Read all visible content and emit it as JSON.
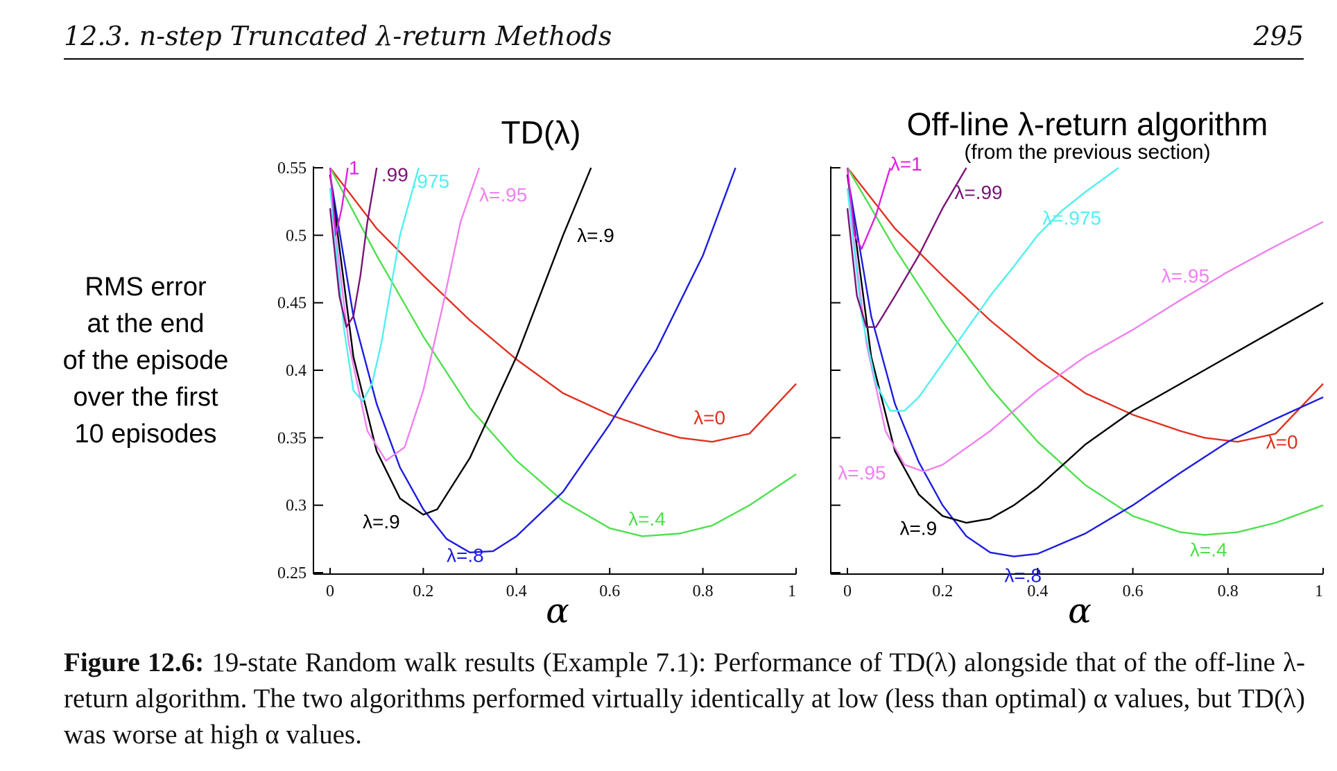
{
  "header": {
    "title": "12.3.  n-step Truncated λ-return Methods",
    "page": "295"
  },
  "ylabel_lines": [
    "RMS error",
    "at the end",
    "of the episode",
    "over the first",
    "10 episodes"
  ],
  "caption": {
    "label": "Figure 12.6:",
    "text": "19-state Random walk results (Example 7.1): Performance of TD(λ) alongside that of the off-line λ-return algorithm. The two algorithms performed virtually identically at low (less than optimal) α values, but TD(λ) was worse at high α values."
  },
  "chart_data": [
    {
      "type": "line",
      "title": "TD(λ)",
      "subtitle": "",
      "xlabel": "α",
      "ylabel": "RMS error at the end of the episode over the first 10 episodes",
      "xlim": [
        0,
        1
      ],
      "ylim": [
        0.25,
        0.55
      ],
      "xticks": [
        "0",
        "0.2",
        "0.4",
        "0.6",
        "0.8",
        "1"
      ],
      "yticks": [
        "0.25",
        "0.3",
        "0.35",
        "0.4",
        "0.45",
        "0.5",
        "0.55"
      ],
      "series": [
        {
          "name": "λ=0",
          "color": "#e03020",
          "label": "λ=0",
          "label_at": [
            0.78,
            0.36
          ],
          "x": [
            0,
            0.1,
            0.2,
            0.3,
            0.4,
            0.5,
            0.6,
            0.7,
            0.75,
            0.82,
            0.9,
            1.0
          ],
          "y": [
            0.55,
            0.505,
            0.47,
            0.437,
            0.408,
            0.383,
            0.367,
            0.355,
            0.35,
            0.347,
            0.353,
            0.39
          ]
        },
        {
          "name": "λ=.4",
          "color": "#4ee04e",
          "label": "λ=.4",
          "label_at": [
            0.64,
            0.285
          ],
          "x": [
            0,
            0.1,
            0.2,
            0.3,
            0.4,
            0.5,
            0.6,
            0.67,
            0.75,
            0.82,
            0.9,
            1.0
          ],
          "y": [
            0.55,
            0.485,
            0.425,
            0.372,
            0.333,
            0.303,
            0.283,
            0.277,
            0.279,
            0.285,
            0.3,
            0.323
          ]
        },
        {
          "name": "λ=.8",
          "color": "#1c1ce0",
          "label": "λ=.8",
          "label_at": [
            0.25,
            0.258
          ],
          "x": [
            0,
            0.05,
            0.1,
            0.15,
            0.2,
            0.25,
            0.3,
            0.35,
            0.4,
            0.5,
            0.6,
            0.7,
            0.75,
            0.8,
            0.87
          ],
          "y": [
            0.545,
            0.44,
            0.375,
            0.328,
            0.297,
            0.275,
            0.265,
            0.266,
            0.277,
            0.31,
            0.36,
            0.415,
            0.45,
            0.485,
            0.55
          ]
        },
        {
          "name": "λ=.9",
          "color": "#000000",
          "label": "λ=.9",
          "label_at": [
            0.07,
            0.283
          ],
          "x": [
            0,
            0.05,
            0.1,
            0.15,
            0.2,
            0.23,
            0.3,
            0.4,
            0.5,
            0.56
          ],
          "y": [
            0.545,
            0.41,
            0.34,
            0.305,
            0.293,
            0.297,
            0.335,
            0.41,
            0.5,
            0.55
          ]
        },
        {
          "name": "λ=.9 (top)",
          "color": "#000000",
          "label": "λ=.9",
          "label_at": [
            0.53,
            0.495
          ],
          "x": [],
          "y": []
        },
        {
          "name": "λ=.95",
          "color": "#f080f0",
          "label": "λ=.95",
          "label_at": [
            0.32,
            0.525
          ],
          "x": [
            0,
            0.04,
            0.08,
            0.12,
            0.16,
            0.2,
            0.24,
            0.28,
            0.32
          ],
          "y": [
            0.535,
            0.42,
            0.355,
            0.333,
            0.343,
            0.385,
            0.445,
            0.51,
            0.55
          ]
        },
        {
          "name": "λ=.975",
          "color": "#50f0f0",
          "label": ".975",
          "label_at": [
            0.175,
            0.535
          ],
          "x": [
            0,
            0.03,
            0.05,
            0.07,
            0.09,
            0.11,
            0.13,
            0.15,
            0.19
          ],
          "y": [
            0.535,
            0.43,
            0.385,
            0.377,
            0.39,
            0.42,
            0.46,
            0.5,
            0.55
          ]
        },
        {
          "name": "λ=.99",
          "color": "#7a1478",
          "label": ".99",
          "label_at": [
            0.11,
            0.54
          ],
          "x": [
            0,
            0.02,
            0.035,
            0.05,
            0.065,
            0.08,
            0.1
          ],
          "y": [
            0.52,
            0.455,
            0.432,
            0.44,
            0.47,
            0.51,
            0.55
          ]
        },
        {
          "name": "λ=1",
          "color": "#e020e0",
          "label": "1",
          "label_at": [
            0.04,
            0.545
          ],
          "x": [
            0,
            0.012,
            0.025,
            0.038
          ],
          "y": [
            0.55,
            0.5,
            0.52,
            0.55
          ]
        }
      ]
    },
    {
      "type": "line",
      "title": "Off-line λ-return algorithm",
      "subtitle": "(from the previous section)",
      "xlabel": "α",
      "ylabel": "",
      "xlim": [
        0,
        1
      ],
      "ylim": [
        0.25,
        0.55
      ],
      "xticks": [
        "0",
        "0.2",
        "0.4",
        "0.6",
        "0.8",
        "1"
      ],
      "yticks": [],
      "series": [
        {
          "name": "λ=0",
          "color": "#e03020",
          "label": "λ=0",
          "label_at": [
            0.88,
            0.342
          ],
          "x": [
            0,
            0.1,
            0.2,
            0.3,
            0.4,
            0.5,
            0.6,
            0.7,
            0.75,
            0.82,
            0.9,
            1.0
          ],
          "y": [
            0.55,
            0.505,
            0.47,
            0.437,
            0.408,
            0.383,
            0.367,
            0.355,
            0.35,
            0.347,
            0.353,
            0.39
          ]
        },
        {
          "name": "λ=.4",
          "color": "#4ee04e",
          "label": "λ=.4",
          "label_at": [
            0.72,
            0.262
          ],
          "x": [
            0,
            0.1,
            0.2,
            0.3,
            0.4,
            0.5,
            0.6,
            0.7,
            0.75,
            0.82,
            0.9,
            1.0
          ],
          "y": [
            0.55,
            0.49,
            0.436,
            0.387,
            0.347,
            0.315,
            0.292,
            0.28,
            0.278,
            0.28,
            0.287,
            0.3
          ]
        },
        {
          "name": "λ=.8",
          "color": "#1c1ce0",
          "label": "λ=.8",
          "label_at": [
            0.33,
            0.243
          ],
          "x": [
            0,
            0.05,
            0.1,
            0.15,
            0.2,
            0.25,
            0.3,
            0.35,
            0.4,
            0.5,
            0.6,
            0.7,
            0.8,
            0.9,
            1.0
          ],
          "y": [
            0.545,
            0.44,
            0.375,
            0.332,
            0.3,
            0.277,
            0.265,
            0.262,
            0.264,
            0.279,
            0.3,
            0.324,
            0.347,
            0.364,
            0.38
          ]
        },
        {
          "name": "λ=.9",
          "color": "#000000",
          "label": "λ=.9",
          "label_at": [
            0.11,
            0.278
          ],
          "x": [
            0,
            0.05,
            0.1,
            0.15,
            0.2,
            0.25,
            0.3,
            0.35,
            0.4,
            0.5,
            0.6,
            0.7,
            0.8,
            0.9,
            1.0
          ],
          "y": [
            0.545,
            0.41,
            0.34,
            0.308,
            0.292,
            0.287,
            0.29,
            0.3,
            0.313,
            0.345,
            0.37,
            0.39,
            0.41,
            0.43,
            0.45
          ]
        },
        {
          "name": "λ=.95",
          "color": "#f080f0",
          "label": "λ=.95",
          "label_at": [
            0.66,
            0.465
          ],
          "x": [
            0,
            0.04,
            0.08,
            0.12,
            0.16,
            0.2,
            0.3,
            0.4,
            0.5,
            0.6,
            0.7,
            0.8,
            0.9,
            1.0
          ],
          "y": [
            0.535,
            0.42,
            0.355,
            0.33,
            0.325,
            0.33,
            0.355,
            0.385,
            0.41,
            0.43,
            0.452,
            0.473,
            0.492,
            0.51
          ]
        },
        {
          "name": "λ=.95 (left)",
          "color": "#f080f0",
          "label": "λ=.95",
          "label_at": [
            -0.02,
            0.319
          ],
          "x": [],
          "y": []
        },
        {
          "name": "λ=.975",
          "color": "#50f0f0",
          "label": "λ=.975",
          "label_at": [
            0.41,
            0.508
          ],
          "x": [
            0,
            0.03,
            0.06,
            0.09,
            0.12,
            0.15,
            0.2,
            0.25,
            0.3,
            0.35,
            0.4,
            0.45,
            0.5,
            0.57
          ],
          "y": [
            0.535,
            0.44,
            0.39,
            0.37,
            0.37,
            0.38,
            0.405,
            0.43,
            0.455,
            0.477,
            0.5,
            0.518,
            0.532,
            0.55
          ]
        },
        {
          "name": "λ=.99",
          "color": "#7a1478",
          "label": "λ=.99",
          "label_at": [
            0.225,
            0.527
          ],
          "x": [
            0,
            0.02,
            0.04,
            0.06,
            0.1,
            0.15,
            0.2,
            0.25
          ],
          "y": [
            0.52,
            0.455,
            0.432,
            0.432,
            0.455,
            0.485,
            0.52,
            0.55
          ]
        },
        {
          "name": "λ=1",
          "color": "#e020e0",
          "label": "λ=1",
          "label_at": [
            0.09,
            0.548
          ],
          "x": [
            0,
            0.015,
            0.03,
            0.06,
            0.09
          ],
          "y": [
            0.55,
            0.5,
            0.49,
            0.515,
            0.55
          ]
        }
      ]
    }
  ]
}
